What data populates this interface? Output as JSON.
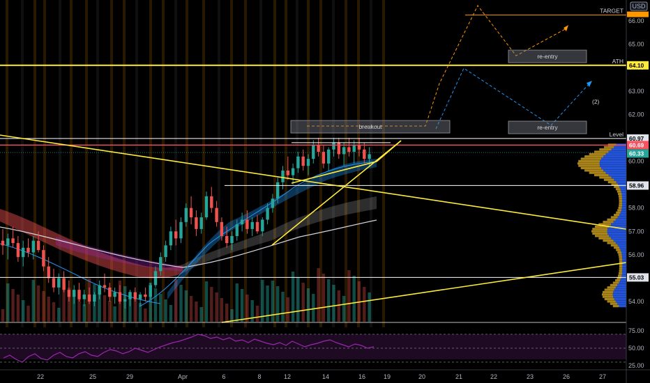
{
  "chart_data": {
    "type": "candlestick",
    "currency": "USD",
    "price_scale": {
      "ylim": [
        53.5,
        66.3
      ],
      "ticks": [
        "54.00",
        "55.00",
        "56.00",
        "57.00",
        "58.00",
        "59.00",
        "60.00",
        "61.00",
        "62.00",
        "63.00",
        "64.00",
        "65.00",
        "66.00"
      ]
    },
    "rsi_scale": {
      "ylim": [
        20,
        80
      ],
      "ticks": [
        "25.00",
        "50.00",
        "75.00"
      ],
      "bands": [
        30,
        50,
        70
      ]
    },
    "date_ticks": [
      "22",
      "25",
      "29",
      "Apr",
      "6",
      "8",
      "12",
      "14",
      "16",
      "19",
      "20",
      "21",
      "22",
      "23",
      "26",
      "27"
    ],
    "levels": [
      {
        "label": "TARGET",
        "value": 66.25,
        "color": "#ff9800",
        "tag": ""
      },
      {
        "label": "ATH",
        "value": 64.1,
        "color": "#ffeb3b",
        "tag": "64.10"
      },
      {
        "label": "Level",
        "value": 60.97,
        "color": "#ffffff",
        "tag": "60.97"
      },
      {
        "label": "",
        "value": 60.69,
        "color": "#f7525f",
        "tag": "60.69"
      },
      {
        "label": "",
        "value": 60.33,
        "color": "#26a69a",
        "tag": "60.33"
      },
      {
        "label": "",
        "value": 58.96,
        "color": "#ffffff",
        "tag": "58.96"
      },
      {
        "label": "",
        "value": 55.03,
        "color": "#ffffff",
        "tag": "55.03"
      }
    ],
    "annotations": [
      {
        "text": "breakout",
        "kind": "box"
      },
      {
        "text": "re-entry",
        "kind": "box"
      },
      {
        "text": "re-entry",
        "kind": "box"
      },
      {
        "text": "(2)",
        "kind": "label"
      }
    ],
    "colors": {
      "up": "#26a69a",
      "down": "#ef5350",
      "trendline": "#ffeb3b",
      "ema_blue": "#2196f3",
      "ema_red": "#ef5350",
      "sma_white": "#d1d4dc",
      "rsi": "#9c27b0",
      "vol_profile_up": "#2962ff",
      "vol_profile_down": "#c79b1e",
      "proj_orange": "#ff9800",
      "proj_blue": "#2196f3",
      "vline": "#ff9800"
    },
    "candles": [
      [
        56.6,
        57.1,
        56.0,
        56.4
      ],
      [
        56.4,
        56.9,
        55.8,
        56.7
      ],
      [
        56.7,
        57.2,
        56.3,
        56.5
      ],
      [
        56.5,
        56.8,
        55.7,
        55.9
      ],
      [
        55.9,
        56.6,
        55.5,
        56.3
      ],
      [
        56.3,
        56.7,
        55.9,
        56.1
      ],
      [
        56.1,
        56.8,
        55.8,
        56.6
      ],
      [
        56.6,
        57.0,
        56.1,
        56.2
      ],
      [
        56.2,
        56.4,
        55.3,
        55.5
      ],
      [
        55.5,
        55.9,
        54.8,
        55.0
      ],
      [
        55.0,
        55.4,
        54.4,
        54.6
      ],
      [
        54.6,
        55.2,
        54.3,
        55.0
      ],
      [
        55.0,
        55.3,
        54.4,
        54.5
      ],
      [
        54.5,
        54.9,
        54.0,
        54.2
      ],
      [
        54.2,
        54.7,
        53.9,
        54.5
      ],
      [
        54.5,
        54.8,
        54.0,
        54.1
      ],
      [
        54.1,
        54.5,
        53.8,
        54.3
      ],
      [
        54.3,
        54.6,
        53.9,
        54.0
      ],
      [
        54.0,
        54.4,
        53.8,
        54.3
      ],
      [
        54.3,
        54.9,
        54.1,
        54.7
      ],
      [
        54.7,
        55.2,
        54.4,
        54.6
      ],
      [
        54.6,
        54.8,
        54.0,
        54.2
      ],
      [
        54.2,
        54.6,
        53.9,
        54.4
      ],
      [
        54.4,
        54.7,
        53.9,
        54.0
      ],
      [
        54.0,
        54.3,
        53.7,
        54.1
      ],
      [
        54.1,
        54.5,
        53.8,
        54.4
      ],
      [
        54.4,
        54.6,
        54.0,
        54.1
      ],
      [
        54.1,
        54.4,
        53.8,
        54.3
      ],
      [
        54.3,
        54.6,
        54.0,
        54.2
      ],
      [
        54.2,
        54.8,
        54.1,
        54.7
      ],
      [
        54.7,
        55.5,
        54.6,
        55.3
      ],
      [
        55.3,
        56.1,
        55.1,
        55.9
      ],
      [
        55.9,
        56.6,
        55.7,
        56.4
      ],
      [
        56.4,
        57.2,
        56.2,
        57.0
      ],
      [
        57.0,
        57.5,
        56.4,
        56.7
      ],
      [
        56.7,
        57.6,
        56.5,
        57.4
      ],
      [
        57.4,
        58.2,
        57.2,
        58.0
      ],
      [
        58.0,
        58.5,
        57.3,
        57.6
      ],
      [
        57.6,
        57.9,
        56.8,
        57.1
      ],
      [
        57.1,
        57.8,
        56.9,
        57.6
      ],
      [
        57.6,
        58.7,
        57.5,
        58.5
      ],
      [
        58.5,
        58.9,
        57.8,
        58.0
      ],
      [
        58.0,
        58.3,
        57.2,
        57.4
      ],
      [
        57.4,
        57.6,
        56.6,
        56.8
      ],
      [
        56.8,
        57.2,
        56.3,
        56.5
      ],
      [
        56.5,
        57.0,
        56.2,
        56.8
      ],
      [
        56.8,
        57.5,
        56.6,
        57.3
      ],
      [
        57.3,
        57.8,
        57.0,
        57.5
      ],
      [
        57.5,
        57.9,
        56.9,
        57.1
      ],
      [
        57.1,
        57.6,
        56.8,
        57.4
      ],
      [
        57.4,
        57.7,
        56.9,
        57.0
      ],
      [
        57.0,
        57.6,
        56.8,
        57.5
      ],
      [
        57.5,
        58.2,
        57.3,
        58.0
      ],
      [
        58.0,
        58.6,
        57.8,
        58.4
      ],
      [
        58.4,
        59.3,
        58.2,
        59.1
      ],
      [
        59.1,
        59.8,
        58.8,
        59.6
      ],
      [
        59.6,
        60.2,
        59.2,
        59.4
      ],
      [
        59.4,
        59.9,
        59.0,
        59.7
      ],
      [
        59.7,
        60.4,
        59.5,
        60.2
      ],
      [
        60.2,
        60.5,
        59.6,
        59.8
      ],
      [
        59.8,
        60.3,
        59.4,
        60.1
      ],
      [
        60.1,
        60.9,
        59.9,
        60.7
      ],
      [
        60.7,
        61.0,
        60.2,
        60.4
      ],
      [
        60.4,
        60.7,
        59.7,
        59.9
      ],
      [
        59.9,
        60.6,
        59.6,
        60.5
      ],
      [
        60.5,
        61.0,
        60.2,
        60.8
      ],
      [
        60.8,
        61.0,
        60.1,
        60.3
      ],
      [
        60.3,
        60.8,
        59.8,
        60.6
      ],
      [
        60.6,
        61.0,
        60.2,
        60.4
      ],
      [
        60.4,
        60.9,
        59.9,
        60.7
      ],
      [
        60.7,
        61.0,
        60.2,
        60.5
      ],
      [
        60.5,
        60.8,
        59.9,
        60.1
      ],
      [
        60.1,
        60.6,
        59.8,
        60.3
      ]
    ]
  }
}
